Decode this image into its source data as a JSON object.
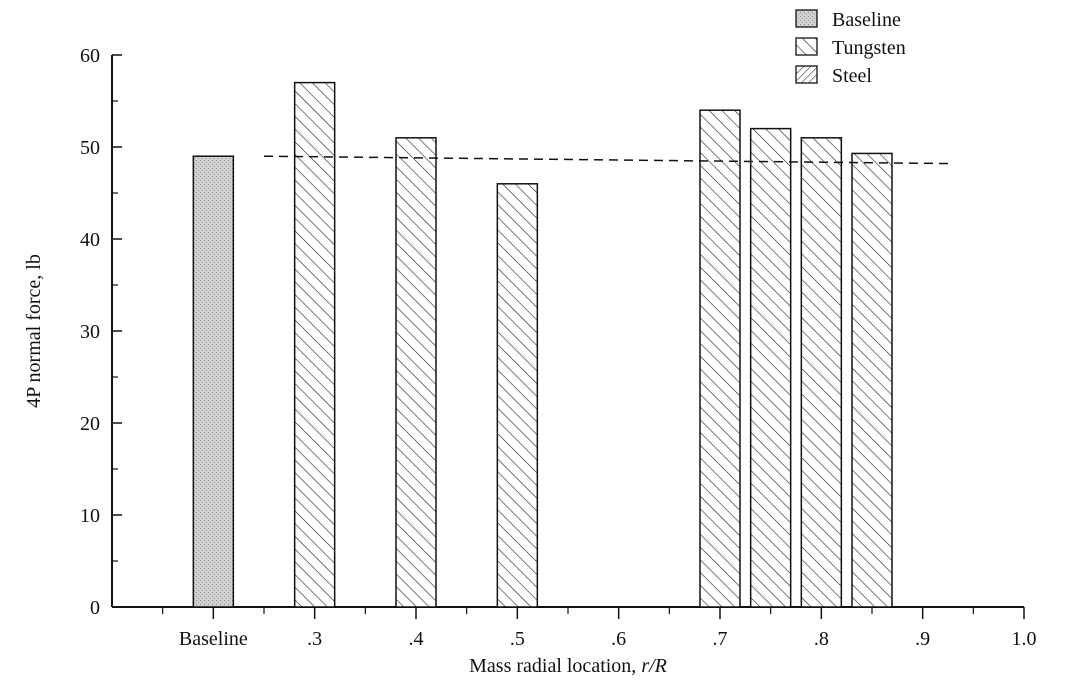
{
  "chart_data": {
    "type": "bar",
    "xlabel": "Mass radial location, r/R",
    "xlabel_plain": "Mass radial location, ",
    "xlabel_italic": "r/R",
    "ylabel": "4P normal force, lb",
    "ylim": [
      0,
      60
    ],
    "yticks": [
      "0",
      "10",
      "20",
      "30",
      "40",
      "50",
      "60"
    ],
    "xticks": [
      {
        "label": "Baseline",
        "x": 0.2
      },
      {
        "label": ".3",
        "x": 0.3
      },
      {
        "label": ".4",
        "x": 0.4
      },
      {
        "label": ".5",
        "x": 0.5
      },
      {
        "label": ".6",
        "x": 0.6
      },
      {
        "label": ".7",
        "x": 0.7
      },
      {
        "label": ".8",
        "x": 0.8
      },
      {
        "label": ".9",
        "x": 0.9
      },
      {
        "label": "1.0",
        "x": 1.0
      }
    ],
    "xlim": [
      0.1,
      1.0
    ],
    "bars": [
      {
        "series": "Baseline",
        "x": 0.2,
        "value": 49
      },
      {
        "series": "Tungsten",
        "x": 0.3,
        "value": 57
      },
      {
        "series": "Tungsten",
        "x": 0.4,
        "value": 51
      },
      {
        "series": "Tungsten",
        "x": 0.5,
        "value": 46
      },
      {
        "series": "Tungsten",
        "x": 0.7,
        "value": 54
      },
      {
        "series": "Tungsten",
        "x": 0.75,
        "value": 52
      },
      {
        "series": "Tungsten",
        "x": 0.8,
        "value": 51
      },
      {
        "series": "Tungsten",
        "x": 0.85,
        "value": 49.3
      }
    ],
    "reference_line": {
      "style": "dashed",
      "from": [
        0.25,
        49
      ],
      "to": [
        0.925,
        48.2
      ]
    },
    "legend": {
      "placement": "top-right",
      "entries": [
        {
          "label": "Baseline",
          "pattern": "stipple"
        },
        {
          "label": "Tungsten",
          "pattern": "hatch-forward"
        },
        {
          "label": "Steel",
          "pattern": "hatch-back"
        }
      ]
    },
    "grid": false
  }
}
